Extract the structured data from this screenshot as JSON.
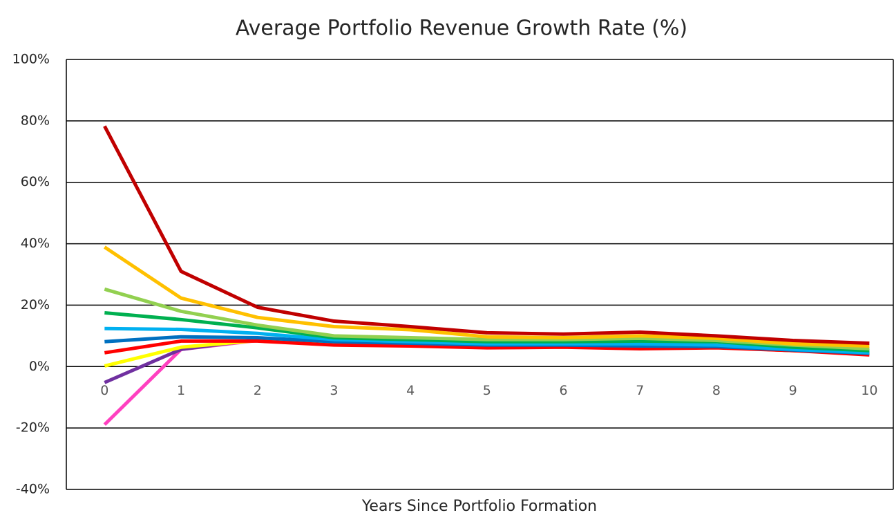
{
  "chart_data": {
    "type": "line",
    "title": "Average Portfolio Revenue Growth Rate (%)",
    "x_label": "Years Since Portfolio Formation",
    "categories": [
      "0",
      "1",
      "2",
      "3",
      "4",
      "5",
      "6",
      "7",
      "8",
      "9",
      "10"
    ],
    "ylim": [
      -40,
      100
    ],
    "yticks": [
      {
        "value": -40,
        "label": "-40%"
      },
      {
        "value": -20,
        "label": "-20%"
      },
      {
        "value": 0,
        "label": "0%"
      },
      {
        "value": 20,
        "label": "20%"
      },
      {
        "value": 40,
        "label": "40%"
      },
      {
        "value": 60,
        "label": "60%"
      },
      {
        "value": 80,
        "label": "80%"
      },
      {
        "value": 100,
        "label": "100%"
      }
    ],
    "grid": true,
    "series": [
      {
        "color": "#ff40c0",
        "values": [
          -18.9,
          5.6,
          8.5,
          7.4,
          7.2,
          6.7,
          6.7,
          6.5,
          6.3,
          5.2,
          4.3
        ]
      },
      {
        "color": "#7030a0",
        "values": [
          -5.2,
          5.6,
          8.8,
          7.5,
          7.2,
          6.7,
          6.7,
          6.5,
          6.3,
          5.2,
          4.3
        ]
      },
      {
        "color": "#ffff00",
        "values": [
          0.2,
          6.3,
          8.5,
          7.4,
          7.2,
          6.7,
          6.7,
          6.5,
          6.3,
          5.2,
          4.3
        ]
      },
      {
        "color": "#ff0000",
        "values": [
          4.5,
          8.3,
          8.3,
          7.0,
          6.7,
          6.1,
          6.3,
          5.8,
          6.1,
          5.2,
          3.8
        ]
      },
      {
        "color": "#0070c0",
        "values": [
          8.1,
          9.7,
          9.4,
          8.1,
          7.6,
          7.0,
          7.0,
          6.7,
          6.5,
          5.4,
          4.3
        ]
      },
      {
        "color": "#00b0f0",
        "values": [
          12.4,
          12.1,
          10.8,
          8.8,
          8.1,
          7.4,
          7.4,
          7.4,
          7.0,
          5.6,
          4.5
        ]
      },
      {
        "color": "#00b050",
        "values": [
          17.5,
          15.3,
          12.6,
          9.4,
          8.8,
          8.1,
          8.1,
          8.3,
          8.1,
          6.3,
          5.2
        ]
      },
      {
        "color": "#92d050",
        "values": [
          25.2,
          18.0,
          13.5,
          10.0,
          9.4,
          8.8,
          8.8,
          9.2,
          8.5,
          7.0,
          5.8
        ]
      },
      {
        "color": "#ffc000",
        "values": [
          38.9,
          22.3,
          16.0,
          13.0,
          12.0,
          9.7,
          9.4,
          10.0,
          9.2,
          7.4,
          6.7
        ]
      },
      {
        "color": "#c00000",
        "values": [
          78.3,
          31.0,
          19.3,
          14.8,
          13.0,
          11.0,
          10.6,
          11.2,
          10.0,
          8.5,
          7.6
        ]
      }
    ]
  }
}
